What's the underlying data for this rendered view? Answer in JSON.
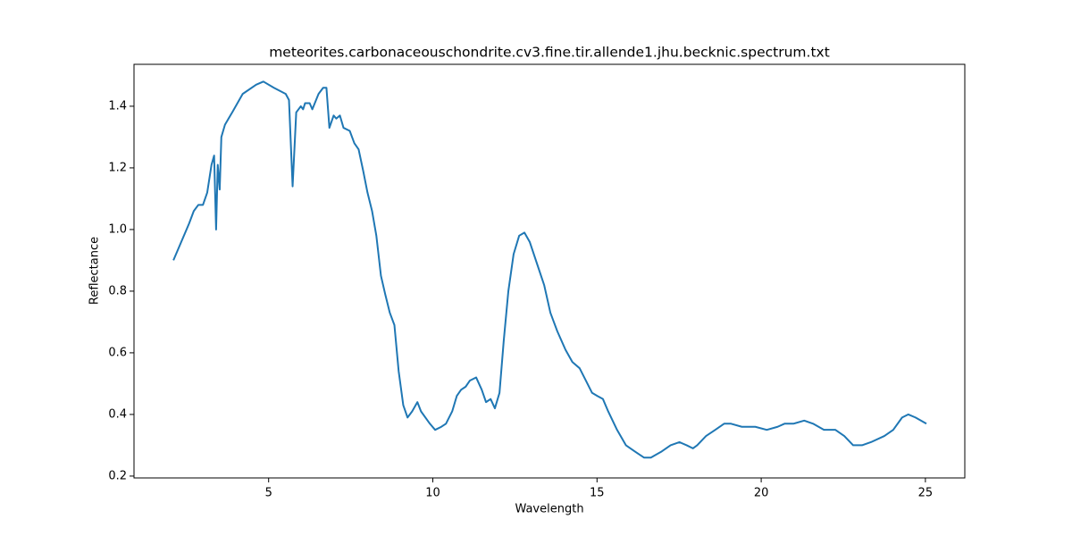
{
  "chart_data": {
    "type": "line",
    "title": "meteorites.carbonaceouschondrite.cv3.fine.tir.allende1.jhu.becknic.spectrum.txt",
    "xlabel": "Wavelength",
    "ylabel": "Reflectance",
    "xlim": [
      0.9,
      26.2
    ],
    "ylim": [
      0.194,
      1.536
    ],
    "xticks": [
      5,
      10,
      15,
      20,
      25
    ],
    "yticks": [
      0.2,
      0.4,
      0.6,
      0.8,
      {
        "value": 1,
        "label": "1.0"
      },
      1.2,
      1.4
    ],
    "series": [
      {
        "color": "#1f77b4",
        "x": [
          2.1,
          2.58,
          2.72,
          2.86,
          3.0,
          3.13,
          3.26,
          3.34,
          3.4,
          3.45,
          3.51,
          3.56,
          3.67,
          3.89,
          4.21,
          4.62,
          4.84,
          5.16,
          5.52,
          5.62,
          5.73,
          5.84,
          5.98,
          6.05,
          6.11,
          6.25,
          6.33,
          6.52,
          6.66,
          6.76,
          6.85,
          6.98,
          7.06,
          7.17,
          7.28,
          7.47,
          7.61,
          7.74,
          7.88,
          8.01,
          8.15,
          8.28,
          8.42,
          8.55,
          8.69,
          8.83,
          8.96,
          9.1,
          9.23,
          9.37,
          9.53,
          9.64,
          9.91,
          10.07,
          10.26,
          10.4,
          10.59,
          10.73,
          10.86,
          11.0,
          11.13,
          11.32,
          11.49,
          11.62,
          11.76,
          11.89,
          12.03,
          12.16,
          12.3,
          12.46,
          12.63,
          12.79,
          12.95,
          13.17,
          13.39,
          13.58,
          13.79,
          14.04,
          14.25,
          14.47,
          14.66,
          14.85,
          15.01,
          15.18,
          15.34,
          15.61,
          15.88,
          16.15,
          16.43,
          16.64,
          16.97,
          17.24,
          17.51,
          17.73,
          17.92,
          18.05,
          18.32,
          18.6,
          18.87,
          19.08,
          19.41,
          19.82,
          20.17,
          20.5,
          20.71,
          20.98,
          21.31,
          21.58,
          21.91,
          22.26,
          22.53,
          22.8,
          23.07,
          23.34,
          23.75,
          24.02,
          24.29,
          24.48,
          24.7,
          25.03
        ],
        "values": [
          0.9,
          1.02,
          1.06,
          1.08,
          1.08,
          1.12,
          1.21,
          1.24,
          1.0,
          1.21,
          1.13,
          1.3,
          1.34,
          1.38,
          1.44,
          1.47,
          1.48,
          1.46,
          1.44,
          1.42,
          1.14,
          1.38,
          1.4,
          1.39,
          1.41,
          1.41,
          1.39,
          1.44,
          1.46,
          1.46,
          1.33,
          1.37,
          1.36,
          1.37,
          1.33,
          1.32,
          1.28,
          1.26,
          1.19,
          1.12,
          1.06,
          0.98,
          0.85,
          0.79,
          0.73,
          0.69,
          0.54,
          0.43,
          0.39,
          0.41,
          0.44,
          0.41,
          0.37,
          0.35,
          0.36,
          0.37,
          0.41,
          0.46,
          0.48,
          0.49,
          0.51,
          0.52,
          0.48,
          0.44,
          0.45,
          0.42,
          0.47,
          0.64,
          0.8,
          0.92,
          0.98,
          0.99,
          0.96,
          0.89,
          0.82,
          0.73,
          0.67,
          0.61,
          0.57,
          0.55,
          0.51,
          0.47,
          0.46,
          0.45,
          0.41,
          0.35,
          0.3,
          0.28,
          0.26,
          0.26,
          0.28,
          0.3,
          0.31,
          0.3,
          0.29,
          0.3,
          0.33,
          0.35,
          0.37,
          0.37,
          0.36,
          0.36,
          0.35,
          0.36,
          0.37,
          0.37,
          0.38,
          0.37,
          0.35,
          0.35,
          0.33,
          0.3,
          0.3,
          0.31,
          0.33,
          0.35,
          0.39,
          0.4,
          0.39,
          0.37
        ]
      }
    ]
  }
}
